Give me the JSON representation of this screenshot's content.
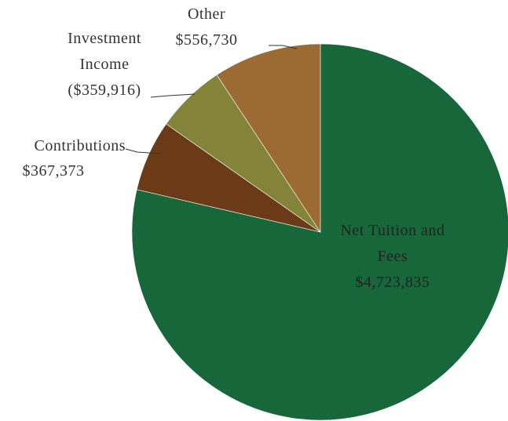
{
  "chart_data": {
    "type": "pie",
    "categories": [
      "Net Tuition and Fees",
      "Contributions",
      "Investment Income",
      "Other"
    ],
    "values": [
      4723835,
      367373,
      359916,
      556730
    ],
    "value_labels": [
      "$4,723,835",
      "$367,373",
      "($359,916)",
      "$556,730"
    ],
    "colors": [
      "#17673a",
      "#6b3a17",
      "#83843a",
      "#9c6b34"
    ]
  }
}
